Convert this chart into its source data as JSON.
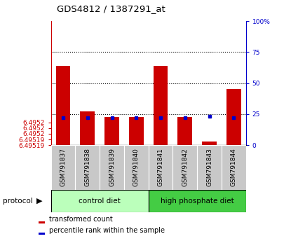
{
  "title": "GDS4812 / 1387291_at",
  "samples": [
    "GSM791837",
    "GSM791838",
    "GSM791839",
    "GSM791840",
    "GSM791841",
    "GSM791842",
    "GSM791843",
    "GSM791844"
  ],
  "bar_tops": [
    6.49526,
    6.49522,
    6.495215,
    6.495215,
    6.49526,
    6.495215,
    6.495193,
    6.49524
  ],
  "blue_vals_right": [
    22,
    22,
    22,
    22,
    22,
    22,
    23,
    22
  ],
  "ymin": 6.49519,
  "ymax": 6.4953,
  "ytick_positions": [
    6.49519,
    6.495195,
    6.4952,
    6.495205,
    6.49521
  ],
  "ytick_labels": [
    "6.49519",
    "6.49519",
    "6.4952",
    "6.4952",
    "6.4952"
  ],
  "right_yticks": [
    0,
    25,
    50,
    75,
    100
  ],
  "right_ytick_labels": [
    "0",
    "25",
    "50",
    "75",
    "100%"
  ],
  "bar_color": "#cc0000",
  "blue_marker_color": "#0000cc",
  "left_axis_color": "#cc0000",
  "right_axis_color": "#0000cc",
  "group1_label": "control diet",
  "group1_color": "#bbffbb",
  "group2_label": "high phosphate diet",
  "group2_color": "#44cc44",
  "protocol_label": "protocol",
  "legend_red_label": "transformed count",
  "legend_blue_label": "percentile rank within the sample",
  "tick_bg_color": "#c8c8c8"
}
